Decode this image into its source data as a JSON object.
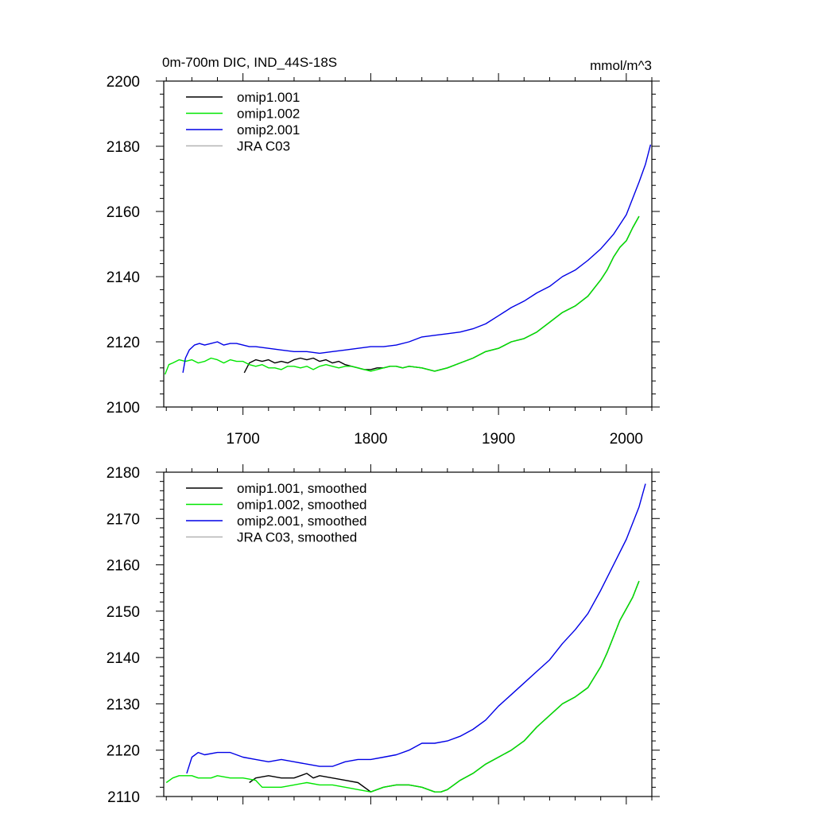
{
  "chart_data": [
    {
      "type": "line",
      "title": "0m-700m DIC, IND_44S-18S",
      "units": "mmol/m^3",
      "xlabel": "",
      "ylabel": "",
      "xlim": [
        1638,
        2020
      ],
      "ylim": [
        2100,
        2200
      ],
      "x_ticks": [
        1700,
        1800,
        1900,
        2000
      ],
      "y_ticks": [
        2100,
        2120,
        2140,
        2160,
        2180,
        2200
      ],
      "legend_position": "top-left",
      "series": [
        {
          "name": "omip1.001",
          "color": "#000000",
          "x": [
            1701,
            1705,
            1710,
            1715,
            1720,
            1725,
            1730,
            1735,
            1740,
            1745,
            1750,
            1755,
            1760,
            1765,
            1770,
            1775,
            1780,
            1785,
            1790,
            1795,
            1800,
            1805,
            1810,
            1815,
            1820,
            1825,
            1830,
            1840,
            1850,
            1860,
            1870,
            1880,
            1890,
            1900,
            1910,
            1920,
            1930,
            1940,
            1950,
            1960,
            1970,
            1980,
            1985,
            1990,
            1995,
            2000,
            2005,
            2010
          ],
          "y": [
            2110.5,
            2113.5,
            2114.5,
            2114.0,
            2114.5,
            2113.5,
            2114.0,
            2113.5,
            2114.5,
            2115.0,
            2114.5,
            2115.0,
            2114.0,
            2114.5,
            2113.5,
            2114.0,
            2113.0,
            2112.5,
            2112.0,
            2111.5,
            2111.5,
            2112.0,
            2112.0,
            2112.5,
            2112.5,
            2112.0,
            2112.5,
            2112.0,
            2111.0,
            2112.0,
            2113.5,
            2115.0,
            2117.0,
            2118.0,
            2120.0,
            2121.0,
            2123.0,
            2126.0,
            2129.0,
            2131.0,
            2134.0,
            2139.0,
            2142.0,
            2146.0,
            2149.0,
            2151.0,
            2155.0,
            2158.5
          ]
        },
        {
          "name": "omip1.002",
          "color": "#00e600",
          "x": [
            1639,
            1642,
            1645,
            1650,
            1655,
            1660,
            1665,
            1670,
            1675,
            1680,
            1685,
            1690,
            1695,
            1700,
            1705,
            1710,
            1715,
            1720,
            1725,
            1730,
            1735,
            1740,
            1745,
            1750,
            1755,
            1760,
            1765,
            1770,
            1775,
            1780,
            1785,
            1790,
            1795,
            1800,
            1805,
            1810,
            1815,
            1820,
            1825,
            1830,
            1840,
            1850,
            1860,
            1870,
            1880,
            1890,
            1900,
            1910,
            1920,
            1930,
            1940,
            1950,
            1960,
            1970,
            1980,
            1985,
            1990,
            1995,
            2000,
            2005,
            2010
          ],
          "y": [
            2110.0,
            2113.0,
            2113.5,
            2114.5,
            2114.0,
            2114.5,
            2113.5,
            2114.0,
            2115.0,
            2114.5,
            2113.5,
            2114.5,
            2114.0,
            2114.0,
            2113.0,
            2112.5,
            2113.0,
            2112.0,
            2112.0,
            2111.5,
            2112.5,
            2112.5,
            2112.0,
            2112.5,
            2111.5,
            2112.5,
            2113.0,
            2112.5,
            2112.0,
            2112.5,
            2112.5,
            2112.0,
            2111.5,
            2111.0,
            2111.5,
            2112.0,
            2112.5,
            2112.5,
            2112.0,
            2112.5,
            2112.0,
            2111.0,
            2112.0,
            2113.5,
            2115.0,
            2117.0,
            2118.0,
            2120.0,
            2121.0,
            2123.0,
            2126.0,
            2129.0,
            2131.0,
            2134.0,
            2139.0,
            2142.0,
            2146.0,
            2149.0,
            2151.0,
            2155.0,
            2158.5
          ]
        },
        {
          "name": "omip2.001",
          "color": "#0000e6",
          "x": [
            1653,
            1655,
            1658,
            1662,
            1666,
            1670,
            1675,
            1680,
            1685,
            1690,
            1695,
            1700,
            1705,
            1710,
            1720,
            1730,
            1740,
            1750,
            1760,
            1770,
            1780,
            1790,
            1800,
            1810,
            1820,
            1830,
            1840,
            1850,
            1860,
            1870,
            1880,
            1890,
            1900,
            1910,
            1920,
            1930,
            1940,
            1950,
            1960,
            1970,
            1980,
            1990,
            2000,
            2005,
            2010,
            2015,
            2019
          ],
          "y": [
            2110.5,
            2115.0,
            2117.5,
            2119.0,
            2119.5,
            2119.0,
            2119.5,
            2120.0,
            2119.0,
            2119.5,
            2119.5,
            2119.0,
            2118.5,
            2118.5,
            2118.0,
            2117.5,
            2117.0,
            2117.0,
            2116.5,
            2117.0,
            2117.5,
            2118.0,
            2118.5,
            2118.5,
            2119.0,
            2120.0,
            2121.5,
            2122.0,
            2122.5,
            2123.0,
            2124.0,
            2125.5,
            2128.0,
            2130.5,
            2132.5,
            2135.0,
            2137.0,
            2140.0,
            2142.0,
            2145.0,
            2148.5,
            2153.0,
            2159.0,
            2164.0,
            2169.0,
            2174.5,
            2180.5
          ]
        },
        {
          "name": "JRA C03",
          "color": "#b3b3b3",
          "x": [],
          "y": []
        }
      ]
    },
    {
      "type": "line",
      "title": "",
      "xlabel": "",
      "ylabel": "",
      "xlim": [
        1638,
        2020
      ],
      "ylim": [
        2110,
        2180
      ],
      "x_ticks": [
        1700,
        1800,
        1900,
        2000
      ],
      "y_ticks": [
        2110,
        2120,
        2130,
        2140,
        2150,
        2160,
        2170,
        2180
      ],
      "legend_position": "top-left",
      "series": [
        {
          "name": "omip1.001, smoothed",
          "color": "#000000",
          "x": [
            1705,
            1710,
            1720,
            1730,
            1740,
            1745,
            1750,
            1755,
            1760,
            1770,
            1780,
            1790,
            1800,
            1810,
            1820,
            1830,
            1840,
            1850,
            1855,
            1860,
            1865,
            1870,
            1880,
            1890,
            1900,
            1910,
            1920,
            1930,
            1940,
            1950,
            1960,
            1970,
            1980,
            1985,
            1990,
            1995,
            2000,
            2005,
            2010
          ],
          "y": [
            2113.0,
            2114.0,
            2114.5,
            2114.0,
            2114.0,
            2114.5,
            2115.0,
            2114.0,
            2114.5,
            2114.0,
            2113.5,
            2113.0,
            2111.0,
            2112.0,
            2112.5,
            2112.5,
            2112.0,
            2111.0,
            2111.0,
            2111.5,
            2112.5,
            2113.5,
            2115.0,
            2117.0,
            2118.5,
            2120.0,
            2122.0,
            2125.0,
            2127.5,
            2130.0,
            2131.5,
            2133.5,
            2138.0,
            2141.0,
            2144.5,
            2148.0,
            2150.5,
            2153.0,
            2156.5
          ]
        },
        {
          "name": "omip1.002, smoothed",
          "color": "#00e600",
          "x": [
            1640,
            1645,
            1650,
            1655,
            1660,
            1665,
            1670,
            1675,
            1680,
            1690,
            1700,
            1710,
            1715,
            1720,
            1730,
            1740,
            1750,
            1760,
            1770,
            1780,
            1790,
            1800,
            1810,
            1820,
            1830,
            1840,
            1850,
            1855,
            1860,
            1865,
            1870,
            1880,
            1890,
            1900,
            1910,
            1920,
            1930,
            1940,
            1950,
            1960,
            1970,
            1980,
            1985,
            1990,
            1995,
            2000,
            2005,
            2010
          ],
          "y": [
            2113.0,
            2114.0,
            2114.5,
            2114.5,
            2114.5,
            2114.0,
            2114.0,
            2114.0,
            2114.5,
            2114.0,
            2114.0,
            2113.5,
            2112.0,
            2112.0,
            2112.0,
            2112.5,
            2113.0,
            2112.5,
            2112.5,
            2112.0,
            2111.5,
            2111.0,
            2112.0,
            2112.5,
            2112.5,
            2112.0,
            2111.0,
            2111.0,
            2111.5,
            2112.5,
            2113.5,
            2115.0,
            2117.0,
            2118.5,
            2120.0,
            2122.0,
            2125.0,
            2127.5,
            2130.0,
            2131.5,
            2133.5,
            2138.0,
            2141.0,
            2144.5,
            2148.0,
            2150.5,
            2153.0,
            2156.5
          ]
        },
        {
          "name": "omip2.001, smoothed",
          "color": "#0000e6",
          "x": [
            1656,
            1660,
            1665,
            1670,
            1680,
            1690,
            1700,
            1710,
            1720,
            1730,
            1740,
            1750,
            1760,
            1770,
            1780,
            1790,
            1800,
            1810,
            1820,
            1830,
            1840,
            1850,
            1860,
            1870,
            1880,
            1890,
            1900,
            1910,
            1920,
            1930,
            1940,
            1950,
            1960,
            1970,
            1980,
            1990,
            2000,
            2005,
            2010,
            2015
          ],
          "y": [
            2115.0,
            2118.5,
            2119.5,
            2119.0,
            2119.5,
            2119.5,
            2118.5,
            2118.0,
            2117.5,
            2118.0,
            2117.5,
            2117.0,
            2116.5,
            2116.5,
            2117.5,
            2118.0,
            2118.0,
            2118.5,
            2119.0,
            2120.0,
            2121.5,
            2121.5,
            2122.0,
            2123.0,
            2124.5,
            2126.5,
            2129.5,
            2132.0,
            2134.5,
            2137.0,
            2139.5,
            2143.0,
            2146.0,
            2149.5,
            2154.5,
            2160.0,
            2165.5,
            2169.0,
            2172.5,
            2177.5
          ]
        },
        {
          "name": "JRA C03, smoothed",
          "color": "#b3b3b3",
          "x": [],
          "y": []
        }
      ]
    }
  ]
}
